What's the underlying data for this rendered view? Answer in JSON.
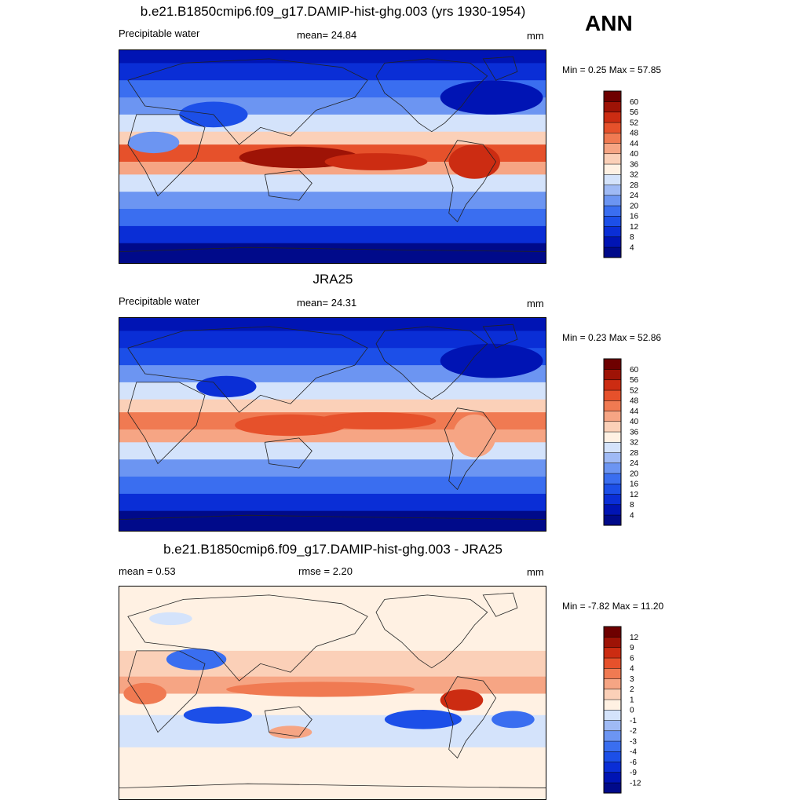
{
  "season": "ANN",
  "chart_data": [
    {
      "type": "heatmap",
      "title": "b.e21.B1850cmip6.f09_g17.DAMIP-hist-ghg.003 (yrs 1930-1954)",
      "left_label": "Precipitable water",
      "center_label": "mean=  24.84",
      "units": "mm",
      "min_max": "Min =   0.25 Max =  57.85",
      "colorbar": {
        "levels": [
          "4",
          "8",
          "12",
          "16",
          "20",
          "24",
          "28",
          "32",
          "36",
          "40",
          "44",
          "48",
          "52",
          "56",
          "60"
        ],
        "colors": [
          "#000a8a",
          "#0014b4",
          "#0a2ed6",
          "#1c4fe8",
          "#3a6ef0",
          "#6c95f2",
          "#9fbaf5",
          "#d4e3fb",
          "#fff1e3",
          "#fbd0b8",
          "#f6a584",
          "#f07a52",
          "#e6512b",
          "#cc2c12",
          "#9e1306",
          "#6e0000"
        ]
      },
      "bands": [
        {
          "y0": 0.0,
          "y1": 0.06,
          "level": 1
        },
        {
          "y0": 0.06,
          "y1": 0.14,
          "level": 2
        },
        {
          "y0": 0.14,
          "y1": 0.22,
          "level": 4
        },
        {
          "y0": 0.22,
          "y1": 0.3,
          "level": 5
        },
        {
          "y0": 0.3,
          "y1": 0.38,
          "level": 7
        },
        {
          "y0": 0.38,
          "y1": 0.44,
          "level": 9
        },
        {
          "y0": 0.44,
          "y1": 0.52,
          "level": 12
        },
        {
          "y0": 0.52,
          "y1": 0.58,
          "level": 10
        },
        {
          "y0": 0.58,
          "y1": 0.66,
          "level": 7
        },
        {
          "y0": 0.66,
          "y1": 0.74,
          "level": 5
        },
        {
          "y0": 0.74,
          "y1": 0.82,
          "level": 4
        },
        {
          "y0": 0.82,
          "y1": 0.9,
          "level": 2
        },
        {
          "y0": 0.9,
          "y1": 1.0,
          "level": 0
        }
      ],
      "features": [
        {
          "cx": 0.42,
          "cy": 0.5,
          "rx": 0.14,
          "ry": 0.05,
          "level": 14
        },
        {
          "cx": 0.6,
          "cy": 0.52,
          "rx": 0.12,
          "ry": 0.04,
          "level": 13
        },
        {
          "cx": 0.83,
          "cy": 0.52,
          "rx": 0.06,
          "ry": 0.08,
          "level": 13
        },
        {
          "cx": 0.87,
          "cy": 0.22,
          "rx": 0.12,
          "ry": 0.08,
          "level": 1
        },
        {
          "cx": 0.22,
          "cy": 0.3,
          "rx": 0.08,
          "ry": 0.06,
          "level": 3
        },
        {
          "cx": 0.08,
          "cy": 0.43,
          "rx": 0.06,
          "ry": 0.05,
          "level": 5
        }
      ]
    },
    {
      "type": "heatmap",
      "title": "JRA25",
      "left_label": "Precipitable water",
      "center_label": "mean=  24.31",
      "units": "mm",
      "min_max": "Min =   0.23 Max =  52.86",
      "colorbar": {
        "levels": [
          "4",
          "8",
          "12",
          "16",
          "20",
          "24",
          "28",
          "32",
          "36",
          "40",
          "44",
          "48",
          "52",
          "56",
          "60"
        ],
        "colors": [
          "#000a8a",
          "#0014b4",
          "#0a2ed6",
          "#1c4fe8",
          "#3a6ef0",
          "#6c95f2",
          "#9fbaf5",
          "#d4e3fb",
          "#fff1e3",
          "#fbd0b8",
          "#f6a584",
          "#f07a52",
          "#e6512b",
          "#cc2c12",
          "#9e1306",
          "#6e0000"
        ]
      },
      "bands": [
        {
          "y0": 0.0,
          "y1": 0.06,
          "level": 1
        },
        {
          "y0": 0.06,
          "y1": 0.14,
          "level": 2
        },
        {
          "y0": 0.14,
          "y1": 0.22,
          "level": 3
        },
        {
          "y0": 0.22,
          "y1": 0.3,
          "level": 5
        },
        {
          "y0": 0.3,
          "y1": 0.38,
          "level": 7
        },
        {
          "y0": 0.38,
          "y1": 0.44,
          "level": 9
        },
        {
          "y0": 0.44,
          "y1": 0.52,
          "level": 11
        },
        {
          "y0": 0.52,
          "y1": 0.58,
          "level": 10
        },
        {
          "y0": 0.58,
          "y1": 0.66,
          "level": 7
        },
        {
          "y0": 0.66,
          "y1": 0.74,
          "level": 5
        },
        {
          "y0": 0.74,
          "y1": 0.82,
          "level": 4
        },
        {
          "y0": 0.82,
          "y1": 0.9,
          "level": 2
        },
        {
          "y0": 0.9,
          "y1": 1.0,
          "level": 0
        }
      ],
      "features": [
        {
          "cx": 0.4,
          "cy": 0.5,
          "rx": 0.13,
          "ry": 0.05,
          "level": 12
        },
        {
          "cx": 0.6,
          "cy": 0.48,
          "rx": 0.14,
          "ry": 0.04,
          "level": 12
        },
        {
          "cx": 0.83,
          "cy": 0.55,
          "rx": 0.05,
          "ry": 0.1,
          "level": 10
        },
        {
          "cx": 0.87,
          "cy": 0.2,
          "rx": 0.12,
          "ry": 0.08,
          "level": 1
        },
        {
          "cx": 0.25,
          "cy": 0.32,
          "rx": 0.07,
          "ry": 0.05,
          "level": 2
        }
      ]
    },
    {
      "type": "heatmap",
      "title": "b.e21.B1850cmip6.f09_g17.DAMIP-hist-ghg.003 - JRA25",
      "left_label": "mean =   0.53",
      "center_label": "rmse =   2.20",
      "units": "mm",
      "min_max": "Min =  -7.82 Max =  11.20",
      "colorbar": {
        "levels": [
          "-12",
          "-9",
          "-6",
          "-4",
          "-3",
          "-2",
          "-1",
          "0",
          "1",
          "2",
          "3",
          "4",
          "6",
          "9",
          "12"
        ],
        "colors": [
          "#000a8a",
          "#0014b4",
          "#0a2ed6",
          "#1c4fe8",
          "#3a6ef0",
          "#6c95f2",
          "#9fbaf5",
          "#d4e3fb",
          "#fff1e3",
          "#fbd0b8",
          "#f6a584",
          "#f07a52",
          "#e6512b",
          "#cc2c12",
          "#9e1306",
          "#6e0000"
        ]
      },
      "bands": [
        {
          "y0": 0.0,
          "y1": 0.3,
          "level": 8
        },
        {
          "y0": 0.3,
          "y1": 0.42,
          "level": 9
        },
        {
          "y0": 0.42,
          "y1": 0.5,
          "level": 10
        },
        {
          "y0": 0.5,
          "y1": 0.6,
          "level": 8
        },
        {
          "y0": 0.6,
          "y1": 0.75,
          "level": 7
        },
        {
          "y0": 0.75,
          "y1": 1.0,
          "level": 8
        }
      ],
      "features": [
        {
          "cx": 0.47,
          "cy": 0.48,
          "rx": 0.22,
          "ry": 0.035,
          "level": 11
        },
        {
          "cx": 0.8,
          "cy": 0.53,
          "rx": 0.05,
          "ry": 0.05,
          "level": 13
        },
        {
          "cx": 0.06,
          "cy": 0.5,
          "rx": 0.05,
          "ry": 0.05,
          "level": 11
        },
        {
          "cx": 0.23,
          "cy": 0.6,
          "rx": 0.08,
          "ry": 0.04,
          "level": 3
        },
        {
          "cx": 0.71,
          "cy": 0.62,
          "rx": 0.09,
          "ry": 0.045,
          "level": 3
        },
        {
          "cx": 0.92,
          "cy": 0.62,
          "rx": 0.05,
          "ry": 0.04,
          "level": 4
        },
        {
          "cx": 0.18,
          "cy": 0.34,
          "rx": 0.07,
          "ry": 0.05,
          "level": 4
        },
        {
          "cx": 0.4,
          "cy": 0.68,
          "rx": 0.05,
          "ry": 0.03,
          "level": 10
        },
        {
          "cx": 0.12,
          "cy": 0.15,
          "rx": 0.05,
          "ry": 0.03,
          "level": 7
        }
      ]
    }
  ]
}
